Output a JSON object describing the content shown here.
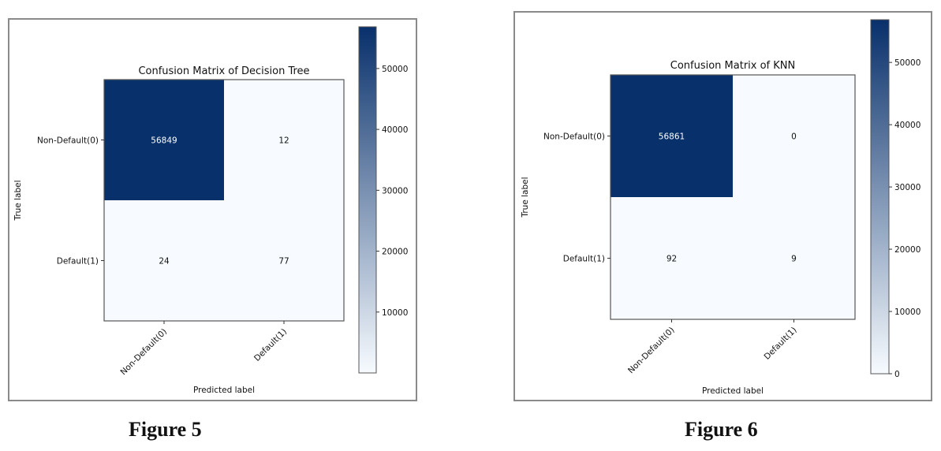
{
  "figures": [
    {
      "caption": "Figure 5",
      "chart_data": {
        "type": "heatmap",
        "title": "Confusion Matrix of Decision Tree",
        "xlabel": "Predicted label",
        "ylabel": "True label",
        "x_tick_labels": [
          "Non-Default(0)",
          "Default(1)"
        ],
        "y_tick_labels": [
          "Non-Default(0)",
          "Default(1)"
        ],
        "matrix": [
          [
            56849,
            12
          ],
          [
            24,
            77
          ]
        ],
        "colormap": "Blues",
        "colorbar": {
          "min": 0,
          "max": 56849,
          "ticks": [
            10000,
            20000,
            30000,
            40000,
            50000
          ],
          "tick_labels": [
            "10000",
            "20000",
            "30000",
            "40000",
            "50000"
          ]
        },
        "grid": false
      }
    },
    {
      "caption": "Figure 6",
      "chart_data": {
        "type": "heatmap",
        "title": "Confusion Matrix of KNN",
        "xlabel": "Predicted label",
        "ylabel": "True label",
        "x_tick_labels": [
          "Non-Default(0)",
          "Default(1)"
        ],
        "y_tick_labels": [
          "Non-Default(0)",
          "Default(1)"
        ],
        "matrix": [
          [
            56861,
            0
          ],
          [
            92,
            9
          ]
        ],
        "colormap": "Blues",
        "colorbar": {
          "min": 0,
          "max": 56861,
          "ticks": [
            0,
            10000,
            20000,
            30000,
            40000,
            50000
          ],
          "tick_labels": [
            "0",
            "10000",
            "20000",
            "30000",
            "40000",
            "50000"
          ]
        },
        "grid": false
      }
    }
  ],
  "colors": {
    "dark": "#08306b",
    "light": "#f7fbff",
    "cell_text_dark": "#ffffff",
    "cell_text_light": "#111111"
  }
}
